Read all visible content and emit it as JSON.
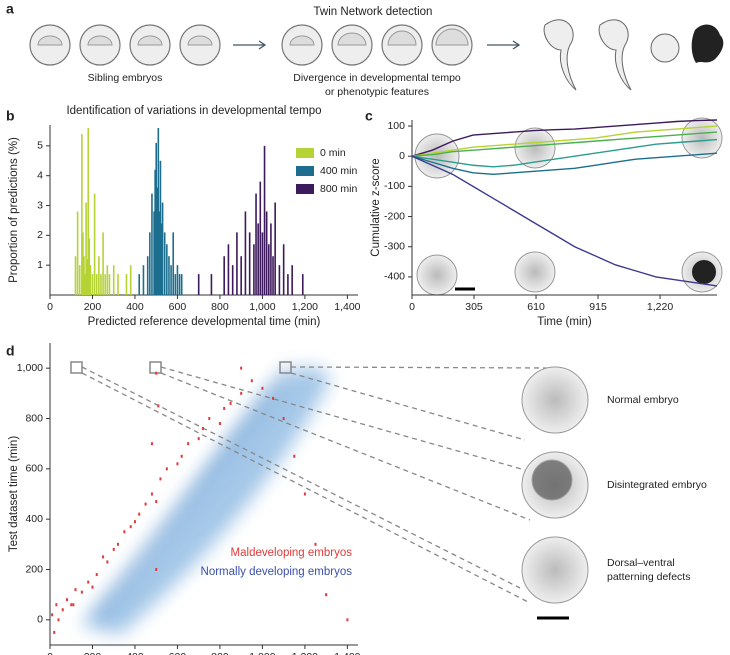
{
  "panel_labels": [
    "a",
    "b",
    "c",
    "d"
  ],
  "schematic": {
    "title": "Twin Network detection",
    "left_label": "Sibling embryos",
    "right_label": [
      "Divergence in developmental tempo",
      "or phenotypic features"
    ]
  },
  "chart_data": [
    {
      "type": "bar",
      "title": "Identification of variations in developmental tempo",
      "xlabel": "Predicted reference developmental time (min)",
      "ylabel": "Proportion of predictions (%)",
      "xlim": [
        0,
        1450
      ],
      "ylim": [
        0,
        5.7
      ],
      "xticks": [
        0,
        200,
        400,
        600,
        800,
        {
          "value": 1000,
          "label": "1,000"
        },
        {
          "value": 1200,
          "label": "1,200"
        },
        {
          "value": 1400,
          "label": "1,400"
        }
      ],
      "yticks": [
        1,
        2,
        3,
        4,
        5
      ],
      "legend": "upper right",
      "series": [
        {
          "name": "0 min",
          "color": "#b5d334",
          "x": [
            120,
            130,
            140,
            150,
            155,
            160,
            165,
            170,
            175,
            180,
            185,
            190,
            200,
            210,
            220,
            230,
            240,
            250,
            260,
            270,
            280,
            300,
            320,
            360,
            380
          ],
          "values": [
            1.3,
            2.8,
            1.0,
            5.4,
            2.1,
            1.3,
            0.7,
            3.1,
            1.2,
            5.6,
            1.9,
            1.0,
            0.7,
            3.4,
            0.7,
            1.3,
            0.7,
            2.1,
            0.7,
            1.0,
            0.7,
            1.0,
            0.7,
            0.7,
            1.0
          ]
        },
        {
          "name": "400 min",
          "color": "#1d6e8e",
          "x": [
            420,
            440,
            460,
            470,
            480,
            490,
            495,
            500,
            505,
            510,
            515,
            520,
            525,
            530,
            540,
            550,
            560,
            570,
            580,
            590,
            600,
            610,
            620
          ],
          "values": [
            0.7,
            1.0,
            1.3,
            2.1,
            3.4,
            2.8,
            4.2,
            5.1,
            3.6,
            5.6,
            2.8,
            4.5,
            2.4,
            3.1,
            2.1,
            1.7,
            1.3,
            1.0,
            2.1,
            0.7,
            1.0,
            0.7,
            0.7
          ]
        },
        {
          "name": "800 min",
          "color": "#3d1a5b",
          "x": [
            700,
            760,
            820,
            840,
            860,
            880,
            900,
            920,
            940,
            960,
            970,
            980,
            990,
            1000,
            1010,
            1020,
            1030,
            1040,
            1050,
            1060,
            1080,
            1100,
            1120,
            1140,
            1190
          ],
          "values": [
            0.7,
            0.7,
            1.3,
            1.7,
            1.0,
            2.1,
            1.3,
            2.8,
            2.1,
            1.7,
            3.4,
            2.4,
            3.8,
            2.1,
            5.0,
            2.8,
            1.7,
            2.4,
            1.3,
            3.1,
            1.0,
            1.7,
            0.7,
            1.0,
            0.7
          ]
        }
      ]
    },
    {
      "type": "line",
      "xlabel": "Time (min)",
      "ylabel": "Cumulative z-score",
      "xlim": [
        0,
        1500
      ],
      "ylim": [
        -460,
        120
      ],
      "xticks": [
        0,
        305,
        610,
        915,
        {
          "value": 1220,
          "label": "1,220"
        }
      ],
      "yticks": [
        -400,
        -300,
        -200,
        -100,
        0,
        100
      ],
      "x": [
        0,
        100,
        200,
        300,
        400,
        500,
        600,
        700,
        800,
        900,
        1000,
        1100,
        1200,
        1300,
        1400,
        1500
      ],
      "series": [
        {
          "color": "#3d1a5b",
          "values": [
            0,
            20,
            50,
            70,
            75,
            80,
            85,
            88,
            90,
            95,
            100,
            105,
            110,
            115,
            118,
            120
          ]
        },
        {
          "color": "#b5d334",
          "values": [
            0,
            10,
            20,
            30,
            35,
            40,
            45,
            50,
            55,
            60,
            70,
            80,
            85,
            90,
            95,
            100
          ]
        },
        {
          "color": "#4caf50",
          "values": [
            0,
            5,
            15,
            20,
            25,
            30,
            35,
            40,
            45,
            50,
            55,
            60,
            65,
            70,
            75,
            80
          ]
        },
        {
          "color": "#2a9d8f",
          "values": [
            0,
            -10,
            -20,
            -30,
            -35,
            -30,
            -20,
            -10,
            0,
            10,
            20,
            30,
            40,
            45,
            50,
            55
          ]
        },
        {
          "color": "#1d6e8e",
          "values": [
            0,
            -20,
            -40,
            -55,
            -60,
            -55,
            -50,
            -45,
            -40,
            -30,
            -20,
            -10,
            -5,
            0,
            5,
            10
          ]
        },
        {
          "color": "#3b3a8f",
          "values": [
            0,
            -30,
            -60,
            -100,
            -140,
            -180,
            -220,
            -260,
            -300,
            -330,
            -360,
            -380,
            -400,
            -410,
            -420,
            -430
          ]
        }
      ]
    },
    {
      "type": "scatter",
      "xlabel": "Reference dataset time (min)",
      "ylabel": "Test dataset time (min)",
      "xlim": [
        0,
        1450
      ],
      "ylim": [
        -100,
        1100
      ],
      "xticks": [
        0,
        200,
        400,
        600,
        800,
        {
          "value": 1000,
          "label": "1,000"
        },
        {
          "value": 1200,
          "label": "1,200"
        },
        {
          "value": 1400,
          "label": "1,400"
        }
      ],
      "yticks": [
        0,
        200,
        400,
        600,
        800,
        {
          "value": 1000,
          "label": "1,000"
        }
      ],
      "annotations": [
        {
          "text": "Maldeveloping embryos",
          "color": "#e03a3a"
        },
        {
          "text": "Normally developing embryos",
          "color": "#3a4fa8"
        }
      ],
      "image_labels": [
        [
          "Normal embryo"
        ],
        [
          "Disintegrated embryo"
        ],
        [
          "Dorsal–ventral",
          "patterning defects"
        ]
      ],
      "series": [
        {
          "color": "#e03a3a",
          "x": [
            10,
            20,
            30,
            40,
            60,
            80,
            100,
            120,
            150,
            180,
            200,
            220,
            250,
            270,
            300,
            320,
            350,
            380,
            400,
            420,
            450,
            480,
            500,
            500,
            510,
            520,
            550,
            600,
            620,
            650,
            700,
            720,
            750,
            800,
            820,
            850,
            900,
            950,
            1000,
            1050,
            1100,
            1150,
            1200,
            1250,
            1300,
            1400,
            480,
            500,
            110,
            900
          ],
          "values": [
            20,
            -50,
            60,
            0,
            40,
            80,
            60,
            120,
            110,
            150,
            130,
            180,
            250,
            230,
            280,
            300,
            350,
            370,
            390,
            420,
            460,
            500,
            470,
            980,
            850,
            560,
            600,
            620,
            650,
            700,
            720,
            760,
            800,
            780,
            840,
            860,
            900,
            950,
            920,
            880,
            800,
            650,
            500,
            300,
            100,
            0,
            700,
            200,
            60,
            1000
          ]
        }
      ]
    }
  ]
}
